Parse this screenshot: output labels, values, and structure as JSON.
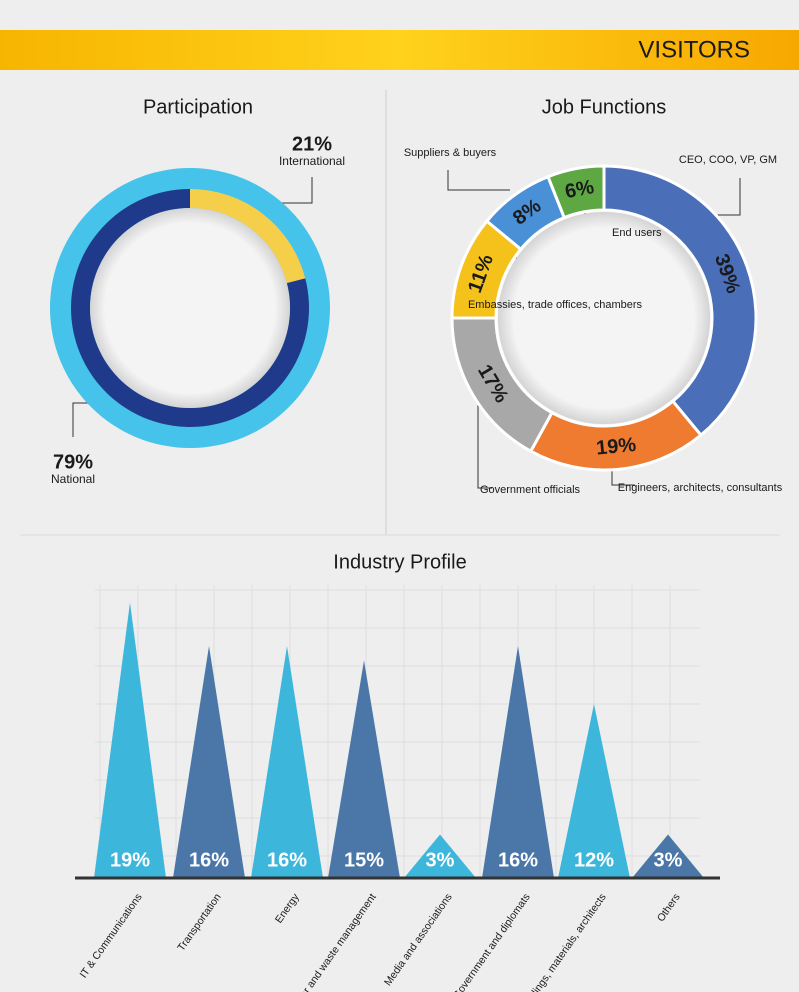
{
  "header": {
    "title": "VISITORS"
  },
  "chart_data": [
    {
      "type": "donut",
      "title": "Participation",
      "categories": [
        "International",
        "National"
      ],
      "values": [
        21,
        79
      ],
      "value_labels": [
        "21%",
        "79%"
      ],
      "colors": [
        "#f6cf4a",
        "#1f3a8a"
      ]
    },
    {
      "type": "donut",
      "title": "Job Functions",
      "categories": [
        "CEO, COO, VP, GM",
        "Engineers, architects, consultants",
        "Government officials",
        "Embassies, trade offices, chambers",
        "Suppliers & buyers",
        "End users"
      ],
      "values": [
        39,
        19,
        17,
        11,
        8,
        6
      ],
      "value_labels": [
        "39%",
        "19%",
        "17%",
        "11%",
        "8%",
        "6%"
      ],
      "colors": [
        "#4a6fb8",
        "#ee7b2f",
        "#a8a8a8",
        "#f5c21c",
        "#4a90d6",
        "#5ea843"
      ]
    },
    {
      "type": "triangle",
      "title": "Industry Profile",
      "categories": [
        "IT & Communications",
        "Transportation",
        "Energy",
        "Water and waste management",
        "Media and associations",
        "Government and diplomats",
        "Smart buildings, materials, architects",
        "Others"
      ],
      "values": [
        19,
        16,
        16,
        15,
        3,
        16,
        12,
        3
      ],
      "value_labels": [
        "19%",
        "16%",
        "16%",
        "15%",
        "3%",
        "16%",
        "12%",
        "3%"
      ],
      "colors": [
        "#3db6dc",
        "#4a77a8",
        "#3db6dc",
        "#4a77a8",
        "#3db6dc",
        "#4a77a8",
        "#3db6dc",
        "#4a77a8"
      ]
    }
  ]
}
